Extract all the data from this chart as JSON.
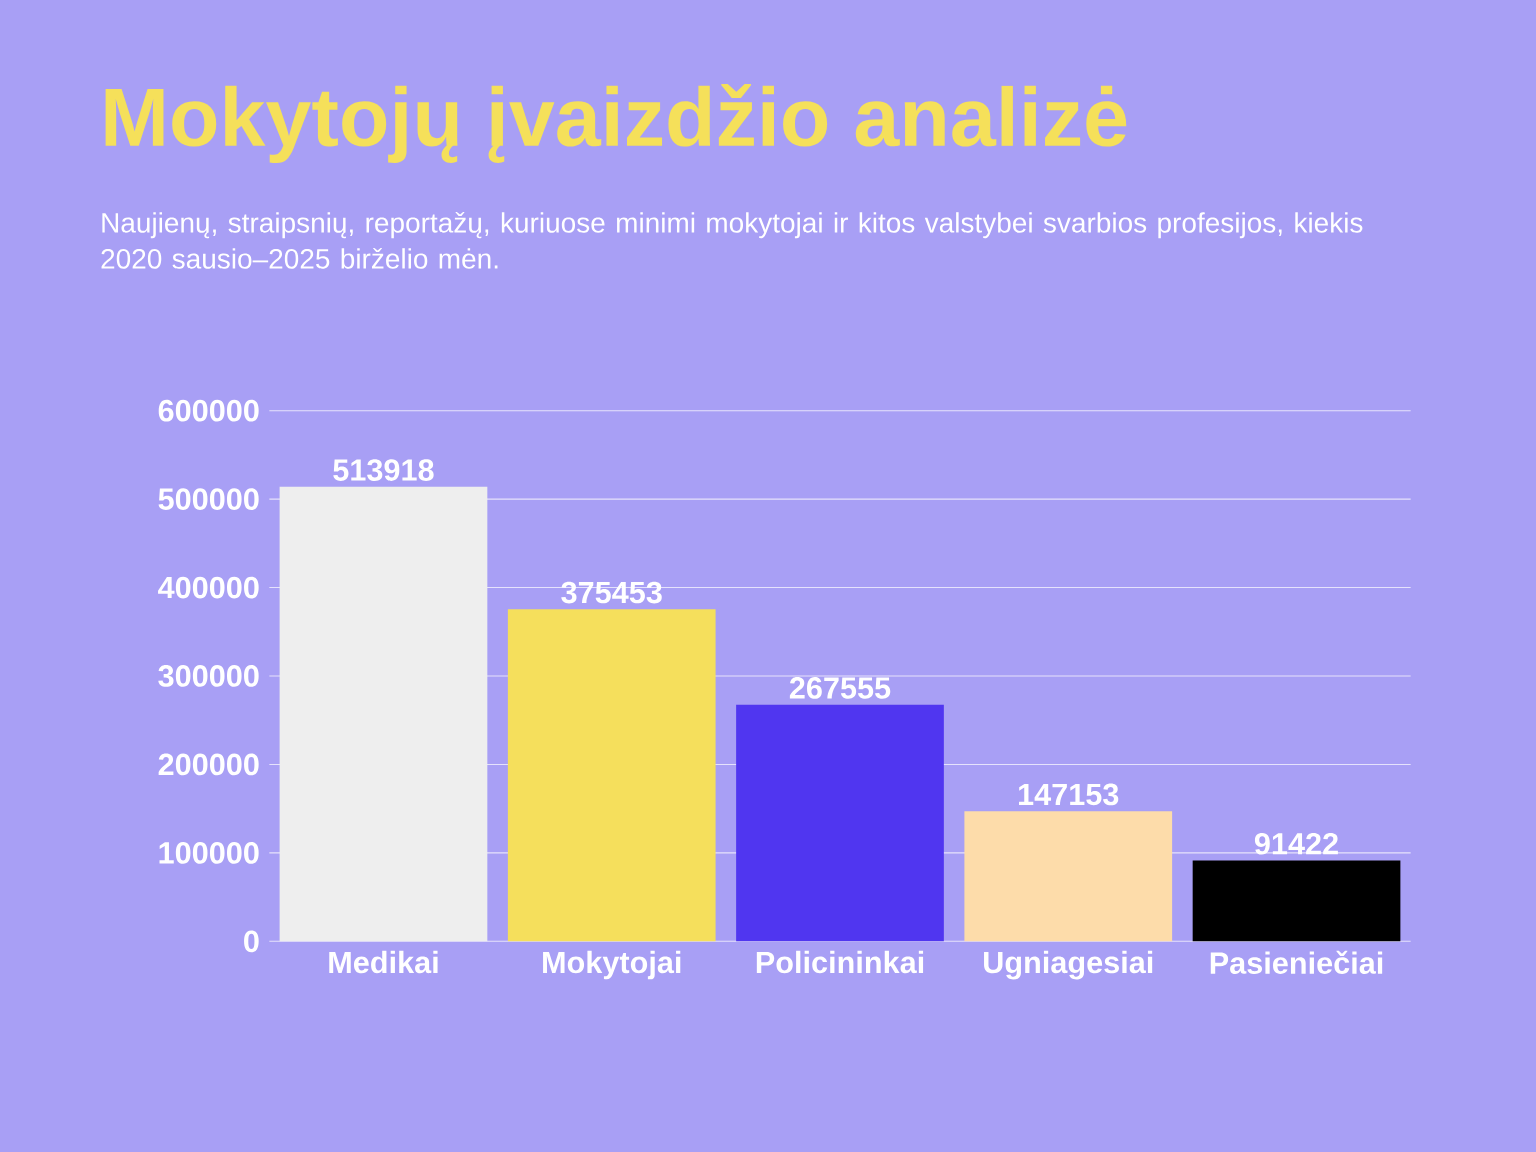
{
  "chart_data": {
    "type": "bar",
    "title": "Mokytojų įvaizdžio analizė",
    "subtitle": "Naujienų, straipsnių, reportažų, kuriuose minimi mokytojai ir kitos valstybei svarbios profesijos, kiekis 2020 sausio–2025 birželio mėn.",
    "categories": [
      "Medikai",
      "Mokytojai",
      "Policininkai",
      "Ugniagesiai",
      "Pasieniečiai"
    ],
    "values": [
      513918,
      375453,
      267555,
      147153,
      91422
    ],
    "colors": [
      "#eeeeee",
      "#f5df5c",
      "#5036f0",
      "#fddcaa",
      "#000000"
    ],
    "ylim": [
      0,
      600000
    ],
    "yticks": [
      0,
      100000,
      200000,
      300000,
      400000,
      500000,
      600000
    ],
    "grid": "y",
    "data_labels": true
  }
}
